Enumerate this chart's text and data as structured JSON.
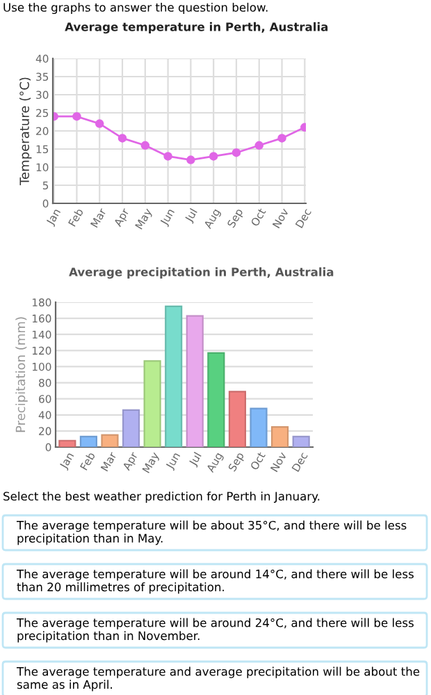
{
  "chart_data": [
    {
      "type": "line",
      "title": "Average temperature in Perth, Australia",
      "ylabel": "Temperature (°C)",
      "annotations": [
        "Use the graphs to answer the question below."
      ],
      "categories": [
        "Jan",
        "Feb",
        "Mar",
        "Apr",
        "May",
        "Jun",
        "Jul",
        "Aug",
        "Sep",
        "Oct",
        "Nov",
        "Dec"
      ],
      "series": [
        {
          "color": "#e066e6",
          "values": [
            24,
            24,
            22,
            18,
            16,
            13,
            12,
            13,
            14,
            16,
            18,
            21
          ]
        }
      ],
      "ylim": [
        0,
        40
      ],
      "yticks": [
        0,
        5,
        10,
        15,
        20,
        25,
        30,
        35,
        40
      ],
      "grid": true,
      "marker": "circle",
      "line_style": "solid"
    },
    {
      "type": "bar",
      "title": "Average precipitation in Perth, Australia",
      "ylabel": "Precipitation (mm)",
      "categories": [
        "Jan",
        "Feb",
        "Mar",
        "Apr",
        "May",
        "Jun",
        "Jul",
        "Aug",
        "Sep",
        "Oct",
        "Nov",
        "Dec"
      ],
      "values": [
        8,
        13,
        15,
        46,
        107,
        175,
        163,
        117,
        69,
        48,
        25,
        13
      ],
      "colors": [
        "#f08080",
        "#80b8f8",
        "#f8b080",
        "#b0b0f0",
        "#b8ec90",
        "#78dccc",
        "#e8a8ec",
        "#58d080",
        "#f08080",
        "#80b8f8",
        "#f8b080",
        "#b0b0f0"
      ],
      "ylim": [
        0,
        180
      ],
      "yticks": [
        0,
        20,
        40,
        60,
        80,
        100,
        120,
        140,
        160,
        180
      ],
      "grid": "y"
    },
    {
      "type": "other",
      "title": "Select the best weather prediction for Perth in January.",
      "annotations": [
        "The average temperature will be about 35°C, and there will be less precipitation than in May.",
        "The average temperature will be around 14°C, and there will be less than 20 millimetres of precipitation.",
        "The average temperature will be around 24°C, and there will be less precipitation than in November.",
        "The average temperature and average precipitation will be about the same as in April."
      ]
    }
  ]
}
